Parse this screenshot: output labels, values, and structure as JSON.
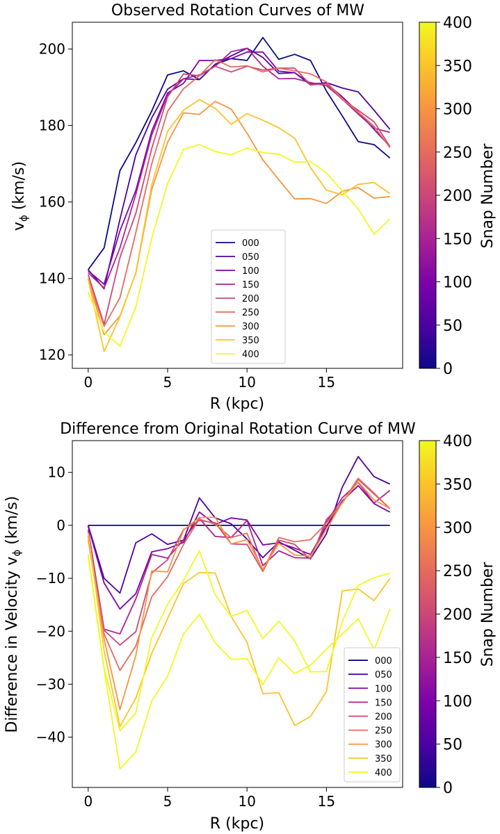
{
  "chart_data": [
    {
      "type": "line",
      "title": "Observed Rotation Curves of MW",
      "xlabel": "R (kpc)",
      "ylabel_main": "v",
      "ylabel_sub": "ϕ",
      "ylabel_unit": " (km/s)",
      "xlim": [
        -1,
        19.8
      ],
      "ylim": [
        116.5,
        207
      ],
      "xticks": [
        0,
        5,
        10,
        15
      ],
      "yticks": [
        120,
        140,
        160,
        180,
        200
      ],
      "legend_placement": "lower center",
      "colorbar": {
        "label": "Snap Number",
        "range": [
          0,
          400
        ],
        "ticks": [
          0,
          50,
          100,
          150,
          200,
          250,
          300,
          350,
          400
        ],
        "colormap": "plasma"
      },
      "x": [
        0,
        1,
        2,
        3,
        4,
        5,
        6,
        7,
        8,
        9,
        10,
        11,
        12,
        13,
        14,
        15,
        16,
        17,
        18,
        19
      ],
      "series": [
        {
          "name": "000",
          "color": "#0d0887",
          "values": [
            142.3,
            148,
            168.2,
            175.5,
            183.8,
            193.2,
            194.3,
            192,
            196,
            197.5,
            197,
            203,
            197.3,
            198.6,
            197,
            189,
            182.5,
            175.8,
            175,
            171.5
          ]
        },
        {
          "name": "050",
          "color": "#4c02a1",
          "values": [
            142.3,
            137.3,
            155.5,
            172.3,
            182,
            189.5,
            192.2,
            192,
            196,
            198.2,
            200.2,
            197.8,
            193.6,
            193.8,
            190.6,
            191.2,
            189.8,
            188.8,
            184,
            179
          ]
        },
        {
          "name": "100",
          "color": "#7e03a8",
          "values": [
            142,
            138.5,
            152.5,
            163,
            178.5,
            188.5,
            191,
            197,
            197,
            197.5,
            199.2,
            199.2,
            194.2,
            193.8,
            191,
            191,
            187.5,
            183.5,
            179,
            174.5
          ]
        },
        {
          "name": "150",
          "color": "#a92395",
          "values": [
            141.5,
            137.5,
            148,
            162,
            177.5,
            188,
            192.2,
            193.2,
            195.5,
            199.3,
            200.2,
            195.5,
            192.2,
            192.3,
            191.2,
            190.4,
            186.9,
            183,
            179.3,
            178.2
          ]
        },
        {
          "name": "200",
          "color": "#cc4778",
          "values": [
            141,
            128,
            145.5,
            157,
            174,
            187.5,
            193.5,
            193,
            195.5,
            194,
            195.5,
            194.5,
            195,
            195,
            190.6,
            190.9,
            186.8,
            184,
            181,
            174.5
          ]
        },
        {
          "name": "250",
          "color": "#e56b5d",
          "values": [
            140,
            127.5,
            135,
            152,
            170,
            183.7,
            189.6,
            193,
            197.2,
            195.3,
            195.6,
            194,
            195,
            194.3,
            193.5,
            191.4,
            187,
            183.5,
            179.8,
            174.2
          ]
        },
        {
          "name": "300",
          "color": "#f89441",
          "values": [
            140,
            125.3,
            130.2,
            141.4,
            163.3,
            175.6,
            183.3,
            182.9,
            186.3,
            184.3,
            178,
            171,
            165.8,
            160.8,
            160.9,
            159.6,
            162.8,
            163.8,
            161,
            161.4
          ]
        },
        {
          "name": "350",
          "color": "#fdc328",
          "values": [
            139.8,
            120.9,
            130,
            141.5,
            164.5,
            178.5,
            184,
            186.8,
            184.5,
            180.3,
            183.1,
            181.4,
            179.4,
            176.7,
            169,
            163.1,
            161.9,
            164.6,
            165.1,
            162.2
          ]
        },
        {
          "name": "400",
          "color": "#f0f921",
          "values": [
            136.5,
            126,
            122.3,
            132.5,
            150.5,
            164.8,
            173.8,
            175,
            173.2,
            172.3,
            174.1,
            172.9,
            172.5,
            170.4,
            170.6,
            167.6,
            162.9,
            158.2,
            151.6,
            155.6
          ]
        }
      ]
    },
    {
      "type": "line",
      "title": "Difference from Original Rotation Curve of MW",
      "xlabel": "R (kpc)",
      "ylabel_main": "Difference in Velocity v",
      "ylabel_sub": "ϕ",
      "ylabel_unit": " (km/s)",
      "xlim": [
        -1,
        19.8
      ],
      "ylim": [
        -49.5,
        16
      ],
      "xticks": [
        0,
        5,
        10,
        15
      ],
      "yticks": [
        -40,
        -30,
        -20,
        -10,
        0,
        10
      ],
      "legend_placement": "lower right",
      "colorbar": {
        "label": "Snap Number",
        "range": [
          0,
          400
        ],
        "ticks": [
          0,
          50,
          100,
          150,
          200,
          250,
          300,
          350,
          400
        ],
        "colormap": "plasma"
      },
      "x": [
        0,
        1,
        2,
        3,
        4,
        5,
        6,
        7,
        8,
        9,
        10,
        11,
        12,
        13,
        14,
        15,
        16,
        17,
        18,
        19
      ],
      "series": [
        {
          "name": "000",
          "color": "#0d0887",
          "values": [
            0,
            0,
            0,
            0,
            0,
            0,
            0,
            0,
            0,
            0,
            0,
            0,
            0,
            0,
            0,
            0,
            0,
            0,
            0,
            0
          ]
        },
        {
          "name": "050",
          "color": "#4c02a1",
          "values": [
            0,
            -10,
            -12.8,
            -3.3,
            -1.6,
            -3.6,
            -2.8,
            5.2,
            1.4,
            0.3,
            -2.6,
            -6.1,
            -3.1,
            -4.7,
            -6.3,
            -1.6,
            7.2,
            13,
            9.2,
            7.8
          ]
        },
        {
          "name": "100",
          "color": "#7e03a8",
          "values": [
            -0.2,
            -10.9,
            -15.8,
            -12.9,
            -5,
            -4.4,
            -3.2,
            2.5,
            0.2,
            1.4,
            1,
            -3.7,
            -3.3,
            -4.3,
            -5.5,
            -0.2,
            4.6,
            7.5,
            4.1,
            2.5
          ]
        },
        {
          "name": "150",
          "color": "#a92395",
          "values": [
            -0.8,
            -19.6,
            -20.5,
            -13.9,
            -5.5,
            -6.2,
            -2.7,
            1.3,
            -2.1,
            -2.3,
            0.9,
            -7.6,
            -4.8,
            -6.1,
            -6.2,
            0.6,
            5.2,
            8.1,
            4.2,
            6.6
          ]
        },
        {
          "name": "200",
          "color": "#cc4778",
          "values": [
            -1.3,
            -19.8,
            -22.6,
            -20.1,
            -9,
            -6.5,
            -0.8,
            0.9,
            0.5,
            -3.5,
            -3.6,
            -8.7,
            -2.8,
            -3.6,
            -6.4,
            1.1,
            4.2,
            8.7,
            5.9,
            3.2
          ]
        },
        {
          "name": "250",
          "color": "#e56b5d",
          "values": [
            -2,
            -20.5,
            -27.4,
            -22.8,
            -13.5,
            -9.7,
            -3.6,
            1.2,
            0.2,
            -2.3,
            -1.5,
            -8.6,
            -2.3,
            -3.1,
            -2.7,
            0.4,
            4.3,
            8.9,
            6.1,
            3.1
          ]
        },
        {
          "name": "300",
          "color": "#f89441",
          "values": [
            -2.7,
            -21.5,
            -34.8,
            -24.6,
            -8.6,
            -8.8,
            -0.9,
            1.5,
            1.5,
            -3.5,
            -2.7,
            -8.3,
            -3.4,
            -5.6,
            -5.8,
            -0.8,
            4.3,
            8.2,
            4.8,
            3.2
          ]
        },
        {
          "name": "350",
          "color": "#fdc328",
          "values": [
            -1.5,
            -23.7,
            -38,
            -32.6,
            -24.2,
            -17.6,
            -11,
            -8.9,
            -9,
            -17.2,
            -22.1,
            -31.8,
            -31.6,
            -37.8,
            -36.1,
            -31.4,
            -12.4,
            -12,
            -14.2,
            -10
          ]
        },
        {
          "name": "400",
          "color": "#f0f921",
          "values": [
            -5.5,
            -26.9,
            -38.8,
            -35.4,
            -21.2,
            -14.9,
            -10.4,
            -4.8,
            -13.1,
            -17.2,
            -16.1,
            -21.4,
            -18.1,
            -21.8,
            -27.7,
            -27.6,
            -18.2,
            -11.3,
            -9.9,
            -9
          ]
        }
      ],
      "extra_series": [
        {
          "name": "400",
          "color": "#f0f921",
          "values": [
            -5.8,
            -27.2,
            -46,
            -42.8,
            -33.2,
            -28.5,
            -20.5,
            -16.8,
            -22.2,
            -25.3,
            -25.2,
            -30.1,
            -25,
            -28,
            -26.4,
            -23.4,
            -20.5,
            -17.6,
            -23.5,
            -15.8
          ]
        }
      ]
    }
  ]
}
